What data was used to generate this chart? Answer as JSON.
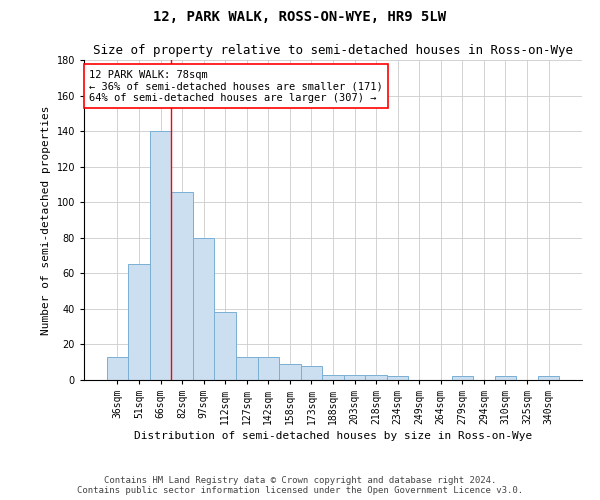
{
  "title": "12, PARK WALK, ROSS-ON-WYE, HR9 5LW",
  "subtitle": "Size of property relative to semi-detached houses in Ross-on-Wye",
  "xlabel": "Distribution of semi-detached houses by size in Ross-on-Wye",
  "ylabel": "Number of semi-detached properties",
  "bin_labels": [
    "36sqm",
    "51sqm",
    "66sqm",
    "82sqm",
    "97sqm",
    "112sqm",
    "127sqm",
    "142sqm",
    "158sqm",
    "173sqm",
    "188sqm",
    "203sqm",
    "218sqm",
    "234sqm",
    "249sqm",
    "264sqm",
    "279sqm",
    "294sqm",
    "310sqm",
    "325sqm",
    "340sqm"
  ],
  "bar_values": [
    13,
    65,
    140,
    106,
    80,
    38,
    13,
    13,
    9,
    8,
    3,
    3,
    3,
    2,
    0,
    0,
    2,
    0,
    2,
    0,
    2
  ],
  "bar_color": "#ccdff0",
  "bar_edge_color": "#7aafd4",
  "annotation_text_line1": "12 PARK WALK: 78sqm",
  "annotation_text_line2": "← 36% of semi-detached houses are smaller (171)",
  "annotation_text_line3": "64% of semi-detached houses are larger (307) →",
  "annotation_box_color": "white",
  "annotation_box_edge": "red",
  "red_line_color": "red",
  "ylim": [
    0,
    180
  ],
  "yticks": [
    0,
    20,
    40,
    60,
    80,
    100,
    120,
    140,
    160,
    180
  ],
  "grid_color": "#cccccc",
  "footer_line1": "Contains HM Land Registry data © Crown copyright and database right 2024.",
  "footer_line2": "Contains public sector information licensed under the Open Government Licence v3.0.",
  "title_fontsize": 10,
  "subtitle_fontsize": 9,
  "axis_label_fontsize": 8,
  "tick_fontsize": 7,
  "annotation_fontsize": 7.5,
  "footer_fontsize": 6.5
}
